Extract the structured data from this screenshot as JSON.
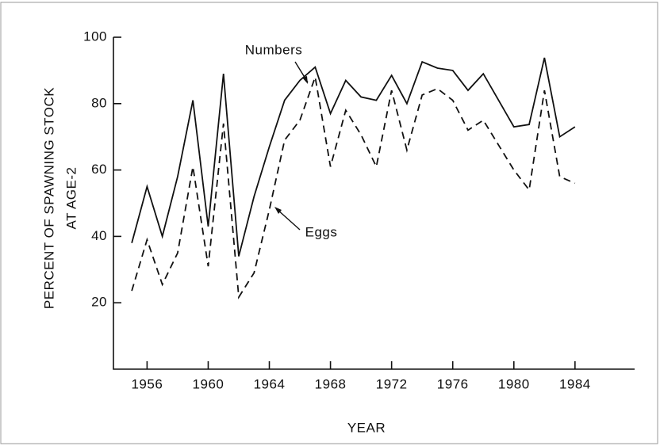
{
  "chart_data": {
    "type": "line",
    "x_label": "YEAR",
    "y_label": [
      "PERCENT OF SPAWNING STOCK",
      "AT AGE-2"
    ],
    "x": [
      1955,
      1956,
      1957,
      1958,
      1959,
      1960,
      1961,
      1962,
      1963,
      1964,
      1965,
      1966,
      1967,
      1968,
      1969,
      1970,
      1971,
      1972,
      1973,
      1974,
      1975,
      1976,
      1977,
      1978,
      1979,
      1980,
      1981,
      1982,
      1983,
      1984
    ],
    "series": [
      {
        "name": "Numbers",
        "color": "#111111",
        "line_style": "solid",
        "values": [
          38,
          55,
          40,
          58,
          81,
          43,
          89,
          34,
          52,
          67,
          81,
          87,
          91,
          77,
          87,
          82,
          81,
          88.5,
          80,
          92.6,
          90.7,
          90,
          84,
          89,
          81,
          73,
          73.7,
          93.8,
          70,
          73
        ]
      },
      {
        "name": "Eggs",
        "color": "#111111",
        "line_style": "dashed",
        "values": [
          23.6,
          39,
          25.5,
          35,
          61,
          31,
          74,
          21.7,
          29,
          48,
          69,
          75,
          88,
          61,
          78,
          70.6,
          61,
          84,
          66,
          82.6,
          84.5,
          81,
          72,
          75,
          67.5,
          60,
          54,
          84,
          58,
          56
        ]
      }
    ],
    "xlim": [
      1953.8,
      1987.9
    ],
    "ylim": [
      0,
      100
    ],
    "xticks": [
      1956,
      1960,
      1964,
      1968,
      1972,
      1976,
      1980,
      1984
    ],
    "yticks": [
      20,
      40,
      60,
      80,
      100
    ],
    "grid": false
  }
}
